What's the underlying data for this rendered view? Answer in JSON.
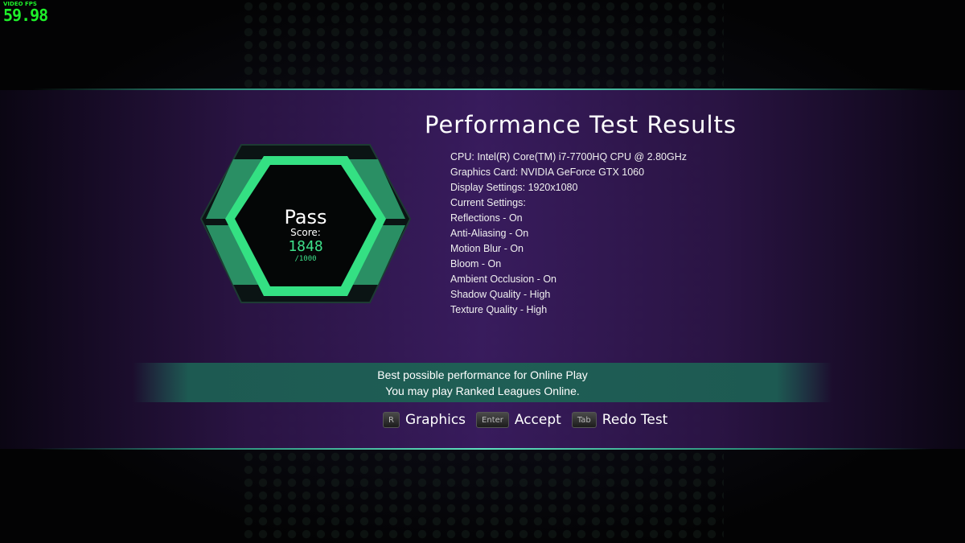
{
  "fps": {
    "label": "VIDEO FPS",
    "value": "59.98"
  },
  "title": "Performance Test Results",
  "specs": [
    "CPU: Intel(R) Core(TM) i7-7700HQ CPU @ 2.80GHz",
    "Graphics Card: NVIDIA GeForce GTX 1060",
    "Display Settings: 1920x1080",
    "Current Settings:",
    "Reflections - On",
    "Anti-Aliasing - On",
    "Motion Blur - On",
    "Bloom - On",
    "Ambient Occlusion - On",
    "Shadow Quality - High",
    "Texture Quality - High"
  ],
  "result": {
    "status": "Pass",
    "score_label": "Score:",
    "score": "1848",
    "max": "/1000"
  },
  "banner": {
    "line1": "Best possible performance for Online Play",
    "line2": "You may play Ranked Leagues Online."
  },
  "controls": [
    {
      "key": "R",
      "label": "Graphics"
    },
    {
      "key": "Enter",
      "label": "Accept"
    },
    {
      "key": "Tab",
      "label": "Redo Test"
    }
  ],
  "colors": {
    "accent": "#3ee08a",
    "fps": "#1ef02a",
    "panel": "#3a1c60",
    "banner": "#1f5e55"
  }
}
